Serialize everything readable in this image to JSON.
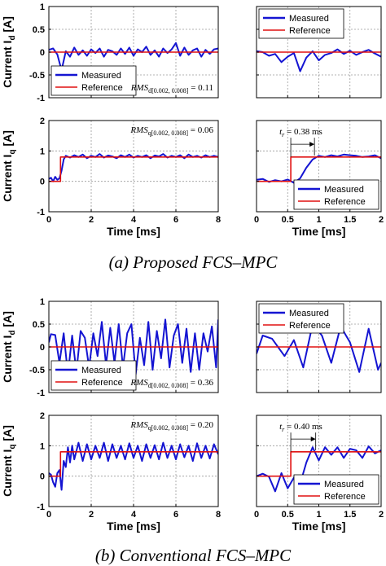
{
  "figure": {
    "captions": [
      "(a) Proposed FCS–MPC",
      "(b) Conventional FCS–MPC"
    ],
    "colors": {
      "measured": "#1414d2",
      "reference": "#e01010",
      "grid": "#9a9a9a"
    }
  },
  "chart_data": [
    {
      "id": "a-id-full",
      "type": "line",
      "ylabel": "Current I_d [A]",
      "xlabel": "",
      "xlim": [
        0,
        8
      ],
      "ylim": [
        -1,
        1
      ],
      "xticks": [
        0,
        2,
        4,
        6,
        8
      ],
      "yticks": [
        -1,
        -0.5,
        0,
        0.5,
        1
      ],
      "show_xticks": false,
      "show_yticks": true,
      "grid": true,
      "legend": {
        "position": "bottom-left",
        "entries": [
          "Measured",
          "Reference"
        ]
      },
      "annotation": {
        "lhs": "RMS",
        "sub": "d[0.002, 0.008]",
        "rhs": " = 0.11",
        "position": "bottom-right"
      },
      "series": [
        {
          "name": "Measured",
          "x": [
            0,
            0.2,
            0.4,
            0.6,
            0.8,
            1.0,
            1.2,
            1.4,
            1.6,
            1.8,
            2.0,
            2.2,
            2.4,
            2.6,
            2.8,
            3.0,
            3.2,
            3.4,
            3.6,
            3.8,
            4.0,
            4.2,
            4.4,
            4.6,
            4.8,
            5.0,
            5.2,
            5.4,
            5.6,
            5.8,
            6.0,
            6.2,
            6.4,
            6.6,
            6.8,
            7.0,
            7.2,
            7.4,
            7.6,
            7.8,
            8.0
          ],
          "y": [
            0.05,
            0.08,
            -0.05,
            -0.4,
            0.02,
            -0.1,
            0.1,
            -0.06,
            0.04,
            -0.08,
            0.06,
            -0.02,
            0.08,
            -0.1,
            0.05,
            0.02,
            -0.06,
            0.08,
            -0.04,
            0.1,
            -0.08,
            0.06,
            0.0,
            0.12,
            -0.06,
            0.04,
            -0.1,
            0.08,
            -0.02,
            0.06,
            0.2,
            -0.08,
            0.1,
            -0.06,
            0.04,
            0.08,
            -0.1,
            0.05,
            -0.04,
            0.06,
            0.08
          ]
        },
        {
          "name": "Reference",
          "x": [
            0,
            8
          ],
          "y": [
            0,
            0
          ]
        }
      ]
    },
    {
      "id": "a-id-zoom",
      "type": "line",
      "ylabel": "",
      "xlabel": "",
      "xlim": [
        0,
        2
      ],
      "ylim": [
        -1,
        1
      ],
      "xticks": [
        0,
        0.5,
        1,
        1.5,
        2
      ],
      "yticks": [
        -1,
        -0.5,
        0,
        0.5,
        1
      ],
      "show_xticks": false,
      "show_yticks": false,
      "grid": true,
      "legend": {
        "position": "top-left",
        "entries": [
          "Measured",
          "Reference"
        ]
      },
      "series": [
        {
          "name": "Measured",
          "x": [
            0,
            0.1,
            0.2,
            0.3,
            0.4,
            0.5,
            0.6,
            0.7,
            0.8,
            0.9,
            1.0,
            1.1,
            1.2,
            1.3,
            1.4,
            1.5,
            1.6,
            1.7,
            1.8,
            1.9,
            2.0
          ],
          "y": [
            0.02,
            0.0,
            -0.08,
            -0.04,
            -0.22,
            -0.1,
            -0.02,
            -0.42,
            -0.12,
            0.02,
            -0.18,
            -0.06,
            -0.02,
            0.06,
            -0.04,
            0.03,
            -0.06,
            0.0,
            0.05,
            -0.03,
            -0.1
          ]
        },
        {
          "name": "Reference",
          "x": [
            0,
            2
          ],
          "y": [
            0,
            0
          ]
        }
      ]
    },
    {
      "id": "a-iq-full",
      "type": "line",
      "ylabel": "Current I_q [A]",
      "xlabel": "Time [ms]",
      "xlim": [
        0,
        8
      ],
      "ylim": [
        -1,
        2
      ],
      "xticks": [
        0,
        2,
        4,
        6,
        8
      ],
      "yticks": [
        -1,
        0,
        1,
        2
      ],
      "show_xticks": true,
      "show_yticks": true,
      "grid": true,
      "annotation": {
        "lhs": "RMS",
        "sub": "q[0.002, 0.008]",
        "rhs": " = 0.06",
        "position": "top-right"
      },
      "series": [
        {
          "name": "Measured",
          "x": [
            0,
            0.1,
            0.2,
            0.3,
            0.4,
            0.5,
            0.6,
            0.7,
            0.8,
            1.0,
            1.2,
            1.4,
            1.6,
            1.8,
            2.0,
            2.2,
            2.4,
            2.6,
            2.8,
            3.0,
            3.2,
            3.4,
            3.6,
            3.8,
            4.0,
            4.2,
            4.4,
            4.6,
            4.8,
            5.0,
            5.2,
            5.4,
            5.6,
            5.8,
            6.0,
            6.2,
            6.4,
            6.6,
            6.8,
            7.0,
            7.2,
            7.4,
            7.6,
            7.8,
            8.0
          ],
          "y": [
            0.08,
            0.12,
            0.0,
            0.15,
            0.05,
            0.1,
            0.35,
            0.72,
            0.84,
            0.78,
            0.86,
            0.8,
            0.88,
            0.76,
            0.84,
            0.8,
            0.9,
            0.78,
            0.85,
            0.82,
            0.76,
            0.86,
            0.8,
            0.88,
            0.78,
            0.84,
            0.8,
            0.86,
            0.76,
            0.85,
            0.82,
            0.9,
            0.78,
            0.84,
            0.8,
            0.86,
            0.76,
            0.88,
            0.8,
            0.84,
            0.78,
            0.86,
            0.8,
            0.84,
            0.8
          ]
        },
        {
          "name": "Reference",
          "x": [
            0,
            0.55,
            0.55,
            8
          ],
          "y": [
            0,
            0,
            0.8,
            0.8
          ]
        }
      ]
    },
    {
      "id": "a-iq-zoom",
      "type": "line",
      "ylabel": "",
      "xlabel": "Time [ms]",
      "xlim": [
        0,
        2
      ],
      "ylim": [
        -1,
        2
      ],
      "xticks": [
        0,
        0.5,
        1,
        1.5,
        2
      ],
      "yticks": [
        -1,
        0,
        1,
        2
      ],
      "show_xticks": true,
      "show_yticks": false,
      "grid": true,
      "legend": {
        "position": "bottom-right",
        "entries": [
          "Measured",
          "Reference"
        ]
      },
      "rise_marker": {
        "label_lhs": "t",
        "label_sub": "r",
        "label_rhs": " = 0.38 ms",
        "from": 0.55,
        "to": 0.93,
        "y": 1.22
      },
      "series": [
        {
          "name": "Measured",
          "x": [
            0,
            0.1,
            0.2,
            0.3,
            0.4,
            0.5,
            0.6,
            0.7,
            0.8,
            0.9,
            1.0,
            1.1,
            1.2,
            1.3,
            1.4,
            1.5,
            1.6,
            1.7,
            1.8,
            1.9,
            2.0
          ],
          "y": [
            0.05,
            0.08,
            -0.02,
            0.04,
            0.0,
            0.06,
            -0.05,
            0.1,
            0.45,
            0.72,
            0.84,
            0.8,
            0.86,
            0.82,
            0.88,
            0.86,
            0.84,
            0.8,
            0.82,
            0.86,
            0.76
          ]
        },
        {
          "name": "Reference",
          "x": [
            0,
            0.55,
            0.55,
            2
          ],
          "y": [
            0,
            0,
            0.8,
            0.8
          ]
        }
      ]
    },
    {
      "id": "b-id-full",
      "type": "line",
      "ylabel": "Current I_d [A]",
      "xlabel": "",
      "xlim": [
        0,
        8
      ],
      "ylim": [
        -1,
        1
      ],
      "xticks": [
        0,
        2,
        4,
        6,
        8
      ],
      "yticks": [
        -1,
        -0.5,
        0,
        0.5,
        1
      ],
      "show_xticks": false,
      "show_yticks": true,
      "grid": true,
      "legend": {
        "position": "bottom-left",
        "entries": [
          "Measured",
          "Reference"
        ]
      },
      "annotation": {
        "lhs": "RMS",
        "sub": "d[0.002, 0.008]",
        "rhs": " = 0.36",
        "position": "bottom-right"
      },
      "series": [
        {
          "name": "Measured",
          "x": [
            0,
            0.1,
            0.3,
            0.5,
            0.7,
            0.9,
            1.1,
            1.3,
            1.5,
            1.7,
            1.9,
            2.1,
            2.3,
            2.5,
            2.7,
            2.9,
            3.1,
            3.3,
            3.5,
            3.7,
            3.9,
            4.1,
            4.3,
            4.5,
            4.7,
            4.9,
            5.1,
            5.3,
            5.5,
            5.7,
            5.9,
            6.1,
            6.3,
            6.5,
            6.7,
            6.9,
            7.1,
            7.3,
            7.5,
            7.7,
            7.9,
            8.0
          ],
          "y": [
            0.1,
            0.28,
            0.26,
            -0.35,
            0.3,
            -0.6,
            0.25,
            -0.55,
            0.35,
            0.2,
            -0.45,
            0.3,
            -0.2,
            0.55,
            -0.4,
            0.42,
            -0.35,
            0.5,
            -0.45,
            0.3,
            0.5,
            -0.6,
            0.2,
            -0.4,
            0.55,
            -0.5,
            0.35,
            -0.25,
            0.6,
            -0.45,
            0.25,
            0.5,
            -0.35,
            0.4,
            -0.55,
            0.3,
            -0.5,
            0.3,
            -0.1,
            0.45,
            -0.45,
            0.6
          ]
        },
        {
          "name": "Reference",
          "x": [
            0,
            8
          ],
          "y": [
            0,
            0
          ]
        }
      ]
    },
    {
      "id": "b-id-zoom",
      "type": "line",
      "ylabel": "",
      "xlabel": "",
      "xlim": [
        0,
        2
      ],
      "ylim": [
        -1,
        1
      ],
      "xticks": [
        0,
        0.5,
        1,
        1.5,
        2
      ],
      "yticks": [
        -1,
        -0.5,
        0,
        0.5,
        1
      ],
      "show_xticks": false,
      "show_yticks": false,
      "grid": true,
      "legend": {
        "position": "top-left",
        "entries": [
          "Measured",
          "Reference"
        ]
      },
      "series": [
        {
          "name": "Measured",
          "x": [
            0,
            0.1,
            0.25,
            0.45,
            0.6,
            0.75,
            0.9,
            1.05,
            1.2,
            1.35,
            1.5,
            1.65,
            1.8,
            1.95,
            2.0
          ],
          "y": [
            -0.15,
            0.25,
            0.18,
            -0.2,
            0.15,
            -0.45,
            0.5,
            0.25,
            -0.35,
            0.45,
            0.1,
            -0.55,
            0.4,
            -0.5,
            -0.35
          ]
        },
        {
          "name": "Reference",
          "x": [
            0,
            2
          ],
          "y": [
            0,
            0
          ]
        }
      ]
    },
    {
      "id": "b-iq-full",
      "type": "line",
      "ylabel": "Current I_q [A]",
      "xlabel": "Time [ms]",
      "xlim": [
        0,
        8
      ],
      "ylim": [
        -1,
        2
      ],
      "xticks": [
        0,
        2,
        4,
        6,
        8
      ],
      "yticks": [
        -1,
        0,
        1,
        2
      ],
      "show_xticks": true,
      "show_yticks": true,
      "grid": true,
      "annotation": {
        "lhs": "RMS",
        "sub": "q[0.002, 0.008]",
        "rhs": " = 0.20",
        "position": "top-right"
      },
      "series": [
        {
          "name": "Measured",
          "x": [
            0,
            0.1,
            0.2,
            0.3,
            0.4,
            0.5,
            0.6,
            0.7,
            0.8,
            0.9,
            1.0,
            1.1,
            1.2,
            1.4,
            1.6,
            1.8,
            2.0,
            2.2,
            2.4,
            2.6,
            2.8,
            3.0,
            3.2,
            3.4,
            3.6,
            3.8,
            4.0,
            4.2,
            4.4,
            4.6,
            4.8,
            5.0,
            5.2,
            5.4,
            5.6,
            5.8,
            6.0,
            6.2,
            6.4,
            6.6,
            6.8,
            7.0,
            7.2,
            7.4,
            7.6,
            7.8,
            8.0
          ],
          "y": [
            0.1,
            0.05,
            -0.2,
            -0.35,
            0.1,
            0.2,
            -0.45,
            0.5,
            0.3,
            0.95,
            0.45,
            1.0,
            0.55,
            1.1,
            0.5,
            1.05,
            0.55,
            1.0,
            0.6,
            1.1,
            0.5,
            1.05,
            0.6,
            1.0,
            0.55,
            1.08,
            0.6,
            1.0,
            0.5,
            1.05,
            0.6,
            1.02,
            0.55,
            1.1,
            0.6,
            1.0,
            0.55,
            1.05,
            0.62,
            1.0,
            0.5,
            1.08,
            0.6,
            1.0,
            0.58,
            1.05,
            0.72
          ]
        },
        {
          "name": "Reference",
          "x": [
            0,
            0.55,
            0.55,
            8
          ],
          "y": [
            0,
            0,
            0.8,
            0.8
          ]
        }
      ]
    },
    {
      "id": "b-iq-zoom",
      "type": "line",
      "ylabel": "",
      "xlabel": "Time [ms]",
      "xlim": [
        0,
        2
      ],
      "ylim": [
        -1,
        2
      ],
      "xticks": [
        0,
        0.5,
        1,
        1.5,
        2
      ],
      "yticks": [
        -1,
        0,
        1,
        2
      ],
      "show_xticks": true,
      "show_yticks": false,
      "grid": true,
      "legend": {
        "position": "bottom-right",
        "entries": [
          "Measured",
          "Reference"
        ]
      },
      "rise_marker": {
        "label_lhs": "t",
        "label_sub": "r",
        "label_rhs": " = 0.40 ms",
        "from": 0.55,
        "to": 0.95,
        "y": 1.22
      },
      "series": [
        {
          "name": "Measured",
          "x": [
            0,
            0.1,
            0.2,
            0.3,
            0.4,
            0.5,
            0.6,
            0.7,
            0.8,
            0.9,
            1.0,
            1.1,
            1.2,
            1.3,
            1.4,
            1.5,
            1.6,
            1.7,
            1.8,
            1.9,
            2.0
          ],
          "y": [
            0.0,
            0.08,
            -0.02,
            -0.5,
            0.1,
            -0.4,
            -0.05,
            -0.25,
            0.45,
            0.95,
            0.52,
            0.95,
            0.7,
            0.95,
            0.6,
            0.9,
            0.85,
            0.6,
            0.98,
            0.75,
            0.85
          ]
        },
        {
          "name": "Reference",
          "x": [
            0,
            0.55,
            0.55,
            2
          ],
          "y": [
            0,
            0,
            0.8,
            0.8
          ]
        }
      ]
    }
  ]
}
